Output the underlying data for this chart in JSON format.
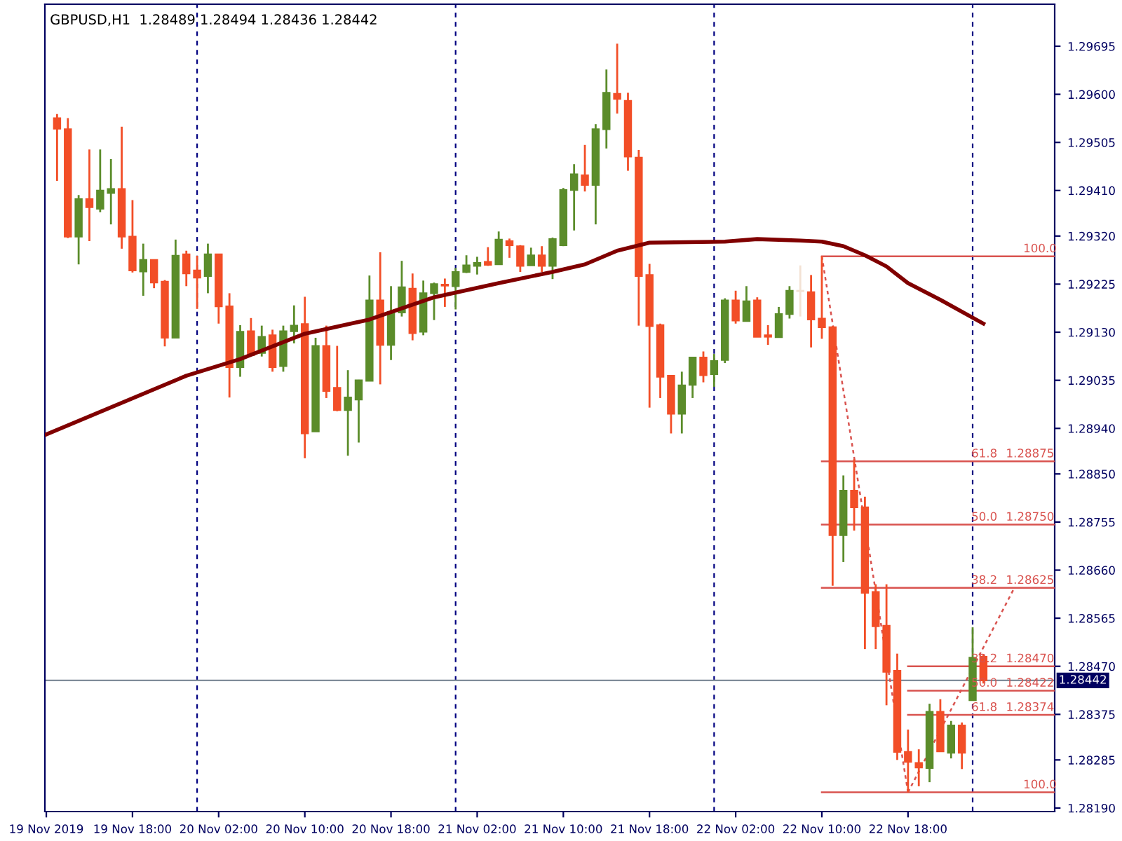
{
  "chart_data": {
    "type": "candlestick",
    "title": "GBPUSD,H1  1.28489 1.28494 1.28436 1.28442",
    "x": [
      "2019-11-19T11:00",
      "2019-11-19T12:00",
      "2019-11-19T13:00",
      "2019-11-19T14:00",
      "2019-11-19T15:00",
      "2019-11-19T16:00",
      "2019-11-19T17:00",
      "2019-11-19T18:00",
      "2019-11-19T19:00",
      "2019-11-19T20:00",
      "2019-11-19T21:00",
      "2019-11-19T22:00",
      "2019-11-19T23:00",
      "2019-11-20T00:00",
      "2019-11-20T01:00",
      "2019-11-20T02:00",
      "2019-11-20T03:00",
      "2019-11-20T04:00",
      "2019-11-20T05:00",
      "2019-11-20T06:00",
      "2019-11-20T07:00",
      "2019-11-20T08:00",
      "2019-11-20T09:00",
      "2019-11-20T10:00",
      "2019-11-20T11:00",
      "2019-11-20T12:00",
      "2019-11-20T13:00",
      "2019-11-20T14:00",
      "2019-11-20T15:00",
      "2019-11-20T16:00",
      "2019-11-20T17:00",
      "2019-11-20T18:00",
      "2019-11-20T19:00",
      "2019-11-20T20:00",
      "2019-11-20T21:00",
      "2019-11-20T22:00",
      "2019-11-20T23:00",
      "2019-11-21T00:00",
      "2019-11-21T01:00",
      "2019-11-21T02:00",
      "2019-11-21T03:00",
      "2019-11-21T04:00",
      "2019-11-21T05:00",
      "2019-11-21T06:00",
      "2019-11-21T07:00",
      "2019-11-21T08:00",
      "2019-11-21T09:00",
      "2019-11-21T10:00",
      "2019-11-21T11:00",
      "2019-11-21T12:00",
      "2019-11-21T13:00",
      "2019-11-21T14:00",
      "2019-11-21T15:00",
      "2019-11-21T16:00",
      "2019-11-21T17:00",
      "2019-11-21T18:00",
      "2019-11-21T19:00",
      "2019-11-21T20:00",
      "2019-11-21T21:00",
      "2019-11-21T22:00",
      "2019-11-21T23:00",
      "2019-11-22T00:00",
      "2019-11-22T01:00",
      "2019-11-22T02:00",
      "2019-11-22T03:00",
      "2019-11-22T04:00",
      "2019-11-22T05:00",
      "2019-11-22T06:00",
      "2019-11-22T07:00",
      "2019-11-22T08:00",
      "2019-11-22T09:00",
      "2019-11-22T10:00",
      "2019-11-22T11:00",
      "2019-11-22T12:00",
      "2019-11-22T13:00",
      "2019-11-22T14:00",
      "2019-11-22T15:00",
      "2019-11-22T16:00",
      "2019-11-22T17:00",
      "2019-11-22T18:00",
      "2019-11-22T19:00",
      "2019-11-22T20:00",
      "2019-11-22T21:00",
      "2019-11-22T22:00",
      "2019-11-22T23:00",
      "2019-11-23T00:00",
      "2019-11-23T01:00"
    ],
    "ohlc": [
      [
        1.29553,
        1.29561,
        1.29429,
        1.29532
      ],
      [
        1.29531,
        1.29553,
        1.29316,
        1.29319
      ],
      [
        1.29319,
        1.29401,
        1.29264,
        1.29393
      ],
      [
        1.29393,
        1.29491,
        1.2931,
        1.29377
      ],
      [
        1.29374,
        1.29491,
        1.29367,
        1.2941
      ],
      [
        1.29405,
        1.29472,
        1.29343,
        1.29413
      ],
      [
        1.29413,
        1.29536,
        1.29295,
        1.29319
      ],
      [
        1.29319,
        1.29391,
        1.29248,
        1.29252
      ],
      [
        1.2925,
        1.29305,
        1.29202,
        1.29273
      ],
      [
        1.29273,
        1.29273,
        1.29217,
        1.29228
      ],
      [
        1.2923,
        1.29233,
        1.29102,
        1.29119
      ],
      [
        1.29119,
        1.29313,
        1.29119,
        1.29281
      ],
      [
        1.29284,
        1.29291,
        1.29221,
        1.29246
      ],
      [
        1.29252,
        1.29281,
        1.29176,
        1.29238
      ],
      [
        1.29241,
        1.29305,
        1.29207,
        1.29284
      ],
      [
        1.29284,
        1.29284,
        1.29147,
        1.29181
      ],
      [
        1.29181,
        1.29207,
        1.29001,
        1.29061
      ],
      [
        1.29061,
        1.29144,
        1.29042,
        1.29131
      ],
      [
        1.29132,
        1.29158,
        1.29085,
        1.29085
      ],
      [
        1.29089,
        1.29143,
        1.29082,
        1.29121
      ],
      [
        1.29124,
        1.29135,
        1.29052,
        1.29061
      ],
      [
        1.29063,
        1.29143,
        1.29052,
        1.29132
      ],
      [
        1.29132,
        1.29183,
        1.29108,
        1.29143
      ],
      [
        1.29146,
        1.292,
        1.28881,
        1.2893
      ],
      [
        1.28934,
        1.29119,
        1.28934,
        1.29103
      ],
      [
        1.29103,
        1.29143,
        1.29,
        1.29014
      ],
      [
        1.2902,
        1.29103,
        1.28974,
        1.28976
      ],
      [
        1.28976,
        1.29055,
        1.28886,
        1.29001
      ],
      [
        1.28997,
        1.29036,
        1.28912,
        1.29035
      ],
      [
        1.29034,
        1.29242,
        1.29034,
        1.29193
      ],
      [
        1.29193,
        1.29288,
        1.29027,
        1.29105
      ],
      [
        1.29105,
        1.29221,
        1.29075,
        1.2917
      ],
      [
        1.29169,
        1.29271,
        1.29161,
        1.29219
      ],
      [
        1.29216,
        1.29246,
        1.29114,
        1.29128
      ],
      [
        1.29131,
        1.29232,
        1.29124,
        1.29207
      ],
      [
        1.29207,
        1.29228,
        1.29154,
        1.29225
      ],
      [
        1.29224,
        1.29236,
        1.2918,
        1.29222
      ],
      [
        1.29221,
        1.29257,
        1.29175,
        1.29249
      ],
      [
        1.29249,
        1.29282,
        1.29247,
        1.29262
      ],
      [
        1.29261,
        1.29279,
        1.29244,
        1.29267
      ],
      [
        1.29269,
        1.29298,
        1.29261,
        1.29263
      ],
      [
        1.29264,
        1.29329,
        1.29264,
        1.29313
      ],
      [
        1.2931,
        1.29315,
        1.29277,
        1.29302
      ],
      [
        1.293,
        1.29302,
        1.29249,
        1.29261
      ],
      [
        1.29262,
        1.29297,
        1.29262,
        1.29282
      ],
      [
        1.29282,
        1.293,
        1.29249,
        1.29261
      ],
      [
        1.29261,
        1.29317,
        1.29235,
        1.29314
      ],
      [
        1.29302,
        1.29415,
        1.293,
        1.29411
      ],
      [
        1.29411,
        1.29462,
        1.29331,
        1.29442
      ],
      [
        1.2944,
        1.295,
        1.29408,
        1.29421
      ],
      [
        1.29421,
        1.29541,
        1.29343,
        1.29531
      ],
      [
        1.29531,
        1.29649,
        1.29493,
        1.29603
      ],
      [
        1.29601,
        1.297,
        1.29562,
        1.29591
      ],
      [
        1.29587,
        1.29603,
        1.29449,
        1.29477
      ],
      [
        1.29475,
        1.2949,
        1.29143,
        1.29241
      ],
      [
        1.29243,
        1.29265,
        1.28981,
        1.29142
      ],
      [
        1.29144,
        1.29147,
        1.29,
        1.29042
      ],
      [
        1.29044,
        1.29044,
        1.2893,
        1.28969
      ],
      [
        1.28969,
        1.29052,
        1.2893,
        1.29025
      ],
      [
        1.29026,
        1.2908,
        1.29,
        1.2908
      ],
      [
        1.2908,
        1.29092,
        1.29031,
        1.29045
      ],
      [
        1.29047,
        1.29087,
        1.29022,
        1.29073
      ],
      [
        1.29075,
        1.29197,
        1.29069,
        1.29193
      ],
      [
        1.29193,
        1.29212,
        1.29147,
        1.29153
      ],
      [
        1.29152,
        1.29221,
        1.29152,
        1.29191
      ],
      [
        1.29193,
        1.29199,
        1.29121,
        1.29121
      ],
      [
        1.29124,
        1.29144,
        1.29105,
        1.29121
      ],
      [
        1.2912,
        1.2918,
        1.2912,
        1.29166
      ],
      [
        1.29166,
        1.29221,
        1.29157,
        1.29212
      ],
      [
        1.29212,
        1.29262,
        1.29161,
        1.29211
      ],
      [
        1.29209,
        1.29243,
        1.291,
        1.29155
      ],
      [
        1.29157,
        1.2928,
        1.29117,
        1.2914
      ],
      [
        1.2914,
        1.29142,
        1.28629,
        1.28729
      ],
      [
        1.28729,
        1.28847,
        1.28676,
        1.28817
      ],
      [
        1.28817,
        1.28879,
        1.28738,
        1.28784
      ],
      [
        1.28784,
        1.28805,
        1.28504,
        1.28615
      ],
      [
        1.28617,
        1.28632,
        1.28504,
        1.28549
      ],
      [
        1.2855,
        1.28632,
        1.28393,
        1.28459
      ],
      [
        1.28461,
        1.28495,
        1.28285,
        1.28301
      ],
      [
        1.28301,
        1.28345,
        1.28221,
        1.28281
      ],
      [
        1.28279,
        1.28306,
        1.28233,
        1.2827
      ],
      [
        1.28269,
        1.28396,
        1.28241,
        1.2838
      ],
      [
        1.2838,
        1.28405,
        1.28302,
        1.28302
      ],
      [
        1.28299,
        1.28362,
        1.28288,
        1.28353
      ],
      [
        1.28353,
        1.28359,
        1.28267,
        1.28299
      ],
      [
        1.28403,
        1.28547,
        1.28403,
        1.28487
      ],
      [
        1.28489,
        1.28494,
        1.28436,
        1.28442
      ]
    ],
    "colors": [
      "#f24e27",
      "#f24e27",
      "#5b8c2a",
      "#f24e27",
      "#5b8c2a",
      "#5b8c2a",
      "#f24e27",
      "#f24e27",
      "#5b8c2a",
      "#f24e27",
      "#f24e27",
      "#5b8c2a",
      "#f24e27",
      "#f24e27",
      "#5b8c2a",
      "#f24e27",
      "#f24e27",
      "#5b8c2a",
      "#f24e27",
      "#5b8c2a",
      "#f24e27",
      "#5b8c2a",
      "#5b8c2a",
      "#f24e27",
      "#5b8c2a",
      "#f24e27",
      "#f24e27",
      "#5b8c2a",
      "#5b8c2a",
      "#5b8c2a",
      "#f24e27",
      "#5b8c2a",
      "#5b8c2a",
      "#f24e27",
      "#5b8c2a",
      "#5b8c2a",
      "#f24e27",
      "#5b8c2a",
      "#5b8c2a",
      "#5b8c2a",
      "#f24e27",
      "#5b8c2a",
      "#f24e27",
      "#f24e27",
      "#5b8c2a",
      "#f24e27",
      "#5b8c2a",
      "#5b8c2a",
      "#5b8c2a",
      "#f24e27",
      "#5b8c2a",
      "#5b8c2a",
      "#f24e27",
      "#f24e27",
      "#f24e27",
      "#f24e27",
      "#f24e27",
      "#f24e27",
      "#5b8c2a",
      "#5b8c2a",
      "#f24e27",
      "#5b8c2a",
      "#5b8c2a",
      "#f24e27",
      "#5b8c2a",
      "#f24e27",
      "#f24e27",
      "#5b8c2a",
      "#5b8c2a",
      "#f3e2d4",
      "#f24e27",
      "#f24e27",
      "#f24e27",
      "#5b8c2a",
      "#f24e27",
      "#f24e27",
      "#f24e27",
      "#f24e27",
      "#f24e27",
      "#f24e27",
      "#f24e27",
      "#5b8c2a",
      "#f24e27",
      "#5b8c2a",
      "#f24e27",
      "#5b8c2a",
      "#f24e27"
    ],
    "series": [
      {
        "type": "line",
        "color": "#800000",
        "line_style": "solid",
        "x": [
          "2019-11-19T10:00",
          "2019-11-19T23:00",
          "2019-11-20T04:00",
          "2019-11-20T10:00",
          "2019-11-20T16:00",
          "2019-11-20T22:00",
          "2019-11-21T04:00",
          "2019-11-21T09:00",
          "2019-11-21T12:00",
          "2019-11-21T15:00",
          "2019-11-21T18:00",
          "2019-11-22T01:00",
          "2019-11-22T04:00",
          "2019-11-22T08:00",
          "2019-11-22T10:00",
          "2019-11-22T12:00",
          "2019-11-22T14:00",
          "2019-11-22T16:00",
          "2019-11-22T18:00",
          "2019-11-22T21:00",
          "2019-11-23T01:00"
        ],
        "values": [
          1.28928,
          1.29044,
          1.29077,
          1.29127,
          1.29155,
          1.29199,
          1.29227,
          1.29249,
          1.29264,
          1.29291,
          1.29307,
          1.29309,
          1.29314,
          1.29311,
          1.29309,
          1.293,
          1.29282,
          1.2926,
          1.29227,
          1.29194,
          1.29147
        ]
      },
      {
        "type": "line",
        "color": "#d9534f",
        "line_style": "dotted",
        "x": [
          "2019-11-22T10:00",
          "2019-11-22T18:00"
        ],
        "values": [
          1.2928,
          1.28221
        ]
      },
      {
        "type": "line",
        "color": "#d9534f",
        "line_style": "dotted",
        "x": [
          "2019-11-22T18:00",
          "2019-11-23T03:54"
        ],
        "values": [
          1.28221,
          1.28626
        ]
      },
      {
        "type": "line",
        "color": "#d9534f",
        "line_style": "solid",
        "x": [
          "2019-11-22T10:00",
          "2019-11-23T07:37"
        ],
        "values": [
          1.2928,
          1.2928
        ]
      },
      {
        "type": "line",
        "color": "#d9534f",
        "line_style": "solid",
        "x": [
          "2019-11-22T10:00",
          "2019-11-23T07:37"
        ],
        "values": [
          1.28875,
          1.28875
        ]
      },
      {
        "type": "line",
        "color": "#d9534f",
        "line_style": "solid",
        "x": [
          "2019-11-22T10:00",
          "2019-11-23T07:37"
        ],
        "values": [
          1.2875,
          1.2875
        ]
      },
      {
        "type": "line",
        "color": "#d9534f",
        "line_style": "solid",
        "x": [
          "2019-11-22T10:00",
          "2019-11-23T07:37"
        ],
        "values": [
          1.28625,
          1.28625
        ]
      },
      {
        "type": "line",
        "color": "#d9534f",
        "line_style": "solid",
        "x": [
          "2019-11-22T10:00",
          "2019-11-23T07:37"
        ],
        "values": [
          1.28221,
          1.28221
        ]
      },
      {
        "type": "line",
        "color": "#d9534f",
        "line_style": "solid",
        "x": [
          "2019-11-22T18:00",
          "2019-11-23T07:37"
        ],
        "values": [
          1.2847,
          1.2847
        ]
      },
      {
        "type": "line",
        "color": "#d9534f",
        "line_style": "solid",
        "x": [
          "2019-11-22T18:00",
          "2019-11-23T07:37"
        ],
        "values": [
          1.28422,
          1.28422
        ]
      },
      {
        "type": "line",
        "color": "#d9534f",
        "line_style": "solid",
        "x": [
          "2019-11-22T18:00",
          "2019-11-23T07:37"
        ],
        "values": [
          1.28374,
          1.28374
        ]
      }
    ],
    "annotations": [
      {
        "text": "100.0",
        "x": "2019-11-23T06:15",
        "y": 1.2928
      },
      {
        "text": "61.8",
        "x": "2019-11-23T01:05",
        "y": 1.28875
      },
      {
        "text": "1.28875",
        "x": "2019-11-23T05:20",
        "y": 1.28875
      },
      {
        "text": "50.0",
        "x": "2019-11-23T01:05",
        "y": 1.2875
      },
      {
        "text": "1.28750",
        "x": "2019-11-23T05:20",
        "y": 1.2875
      },
      {
        "text": "38.2",
        "x": "2019-11-23T01:05",
        "y": 1.28625
      },
      {
        "text": "1.28625",
        "x": "2019-11-23T05:20",
        "y": 1.28625
      },
      {
        "text": "38.2",
        "x": "2019-11-23T01:05",
        "y": 1.2847
      },
      {
        "text": "1.28470",
        "x": "2019-11-23T05:20",
        "y": 1.2847
      },
      {
        "text": "50.0",
        "x": "2019-11-23T01:05",
        "y": 1.28422
      },
      {
        "text": "1.28422",
        "x": "2019-11-23T05:20",
        "y": 1.28422
      },
      {
        "text": "61.8",
        "x": "2019-11-23T01:05",
        "y": 1.28374
      },
      {
        "text": "1.28374",
        "x": "2019-11-23T05:20",
        "y": 1.28374
      },
      {
        "text": "100.0",
        "x": "2019-11-23T06:15",
        "y": 1.28221
      }
    ],
    "ref_lines": [
      {
        "axis": "x",
        "value": "2019-11-20T00:00",
        "color": "#000080",
        "line_style": "dashed"
      },
      {
        "axis": "x",
        "value": "2019-11-21T00:00",
        "color": "#000080",
        "line_style": "dashed"
      },
      {
        "axis": "x",
        "value": "2019-11-22T00:00",
        "color": "#000080",
        "line_style": "dashed"
      },
      {
        "axis": "x",
        "value": "2019-11-23T00:00",
        "color": "#000080",
        "line_style": "dashed"
      },
      {
        "axis": "y",
        "value": 1.28442,
        "label": "1.28442",
        "color": "#7f8c99",
        "line_style": "solid"
      }
    ],
    "xlim": [
      "2019-11-19T09:52",
      "2019-11-23T07:37"
    ],
    "xticks": [
      {
        "value": "2019-11-19T10:00",
        "label": "19 Nov 2019"
      },
      {
        "value": "2019-11-19T18:00",
        "label": "19 Nov 18:00"
      },
      {
        "value": "2019-11-20T02:00",
        "label": "20 Nov 02:00"
      },
      {
        "value": "2019-11-20T10:00",
        "label": "20 Nov 10:00"
      },
      {
        "value": "2019-11-20T18:00",
        "label": "20 Nov 18:00"
      },
      {
        "value": "2019-11-21T02:00",
        "label": "21 Nov 02:00"
      },
      {
        "value": "2019-11-21T10:00",
        "label": "21 Nov 10:00"
      },
      {
        "value": "2019-11-21T18:00",
        "label": "21 Nov 18:00"
      },
      {
        "value": "2019-11-22T02:00",
        "label": "22 Nov 02:00"
      },
      {
        "value": "2019-11-22T10:00",
        "label": "22 Nov 10:00"
      },
      {
        "value": "2019-11-22T18:00",
        "label": "22 Nov 18:00"
      }
    ],
    "ylim": [
      1.28183,
      1.29778
    ],
    "yticks": [
      {
        "value": 1.29695,
        "label": "1.29695"
      },
      {
        "value": 1.296,
        "label": "1.29600"
      },
      {
        "value": 1.29505,
        "label": "1.29505"
      },
      {
        "value": 1.2941,
        "label": "1.29410"
      },
      {
        "value": 1.2932,
        "label": "1.29320"
      },
      {
        "value": 1.29225,
        "label": "1.29225"
      },
      {
        "value": 1.2913,
        "label": "1.29130"
      },
      {
        "value": 1.29035,
        "label": "1.29035"
      },
      {
        "value": 1.2894,
        "label": "1.28940"
      },
      {
        "value": 1.2885,
        "label": "1.28850"
      },
      {
        "value": 1.28755,
        "label": "1.28755"
      },
      {
        "value": 1.2866,
        "label": "1.28660"
      },
      {
        "value": 1.28565,
        "label": "1.28565"
      },
      {
        "value": 1.2847,
        "label": "1.28470"
      },
      {
        "value": 1.28375,
        "label": "1.28375"
      },
      {
        "value": 1.28285,
        "label": "1.28285"
      },
      {
        "value": 1.2819,
        "label": "1.28190"
      }
    ]
  }
}
